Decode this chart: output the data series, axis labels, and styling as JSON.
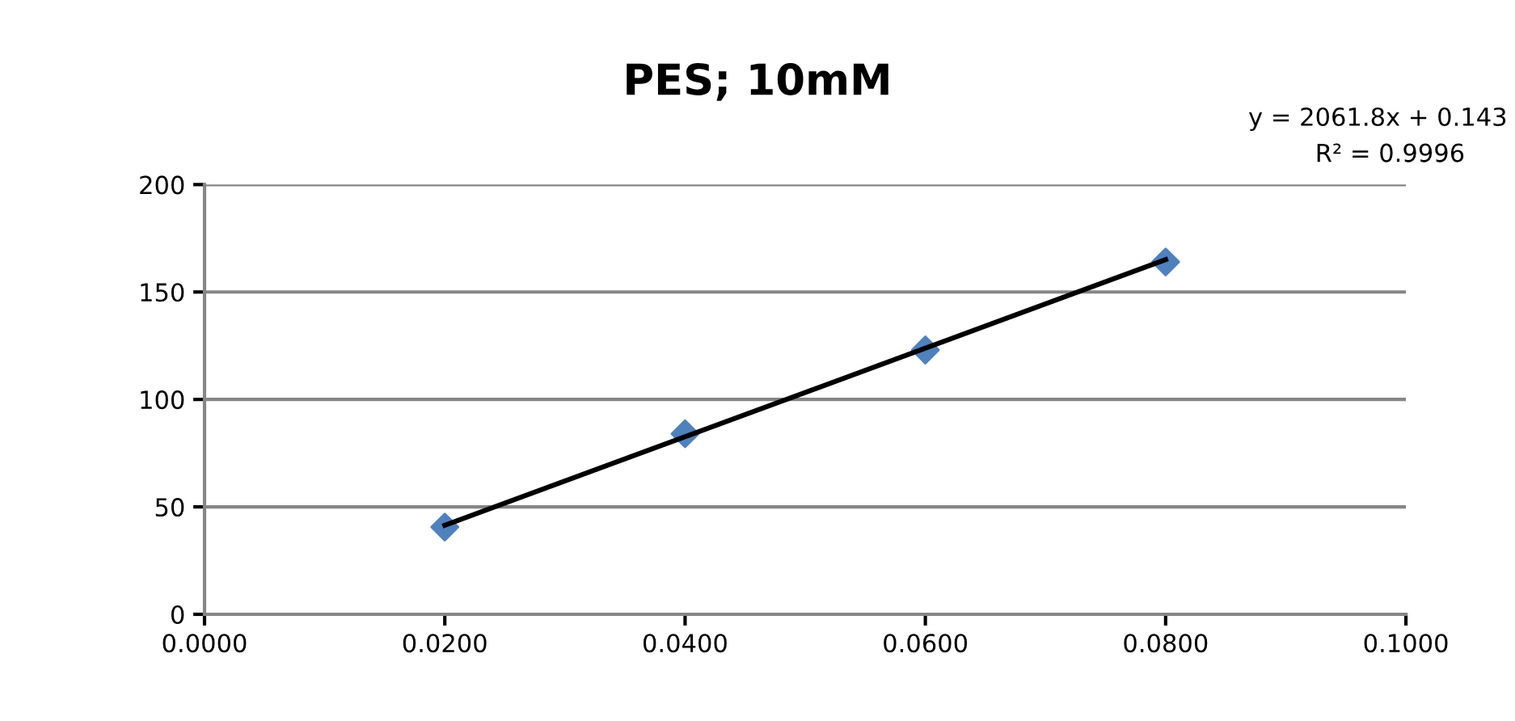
{
  "chart_data": {
    "type": "scatter",
    "title": "PES; 10mM",
    "series": [
      {
        "color": "#4f81bd",
        "marker": "diamond",
        "x": [
          0.02,
          0.04,
          0.06,
          0.08
        ],
        "values": [
          40.6,
          84,
          123,
          164
        ]
      },
      {
        "type": "line",
        "color": "#000000",
        "marker": "none",
        "line_style": "solid",
        "x": [
          0.02,
          0.08
        ],
        "values": [
          41.4,
          165.1
        ]
      }
    ],
    "xlim": [
      0,
      0.1
    ],
    "xticks": [
      {
        "value": 0,
        "label": "0.0000"
      },
      {
        "value": 0.02,
        "label": "0.0200"
      },
      {
        "value": 0.04,
        "label": "0.0400"
      },
      {
        "value": 0.06,
        "label": "0.0600"
      },
      {
        "value": 0.08,
        "label": "0.0800"
      },
      {
        "value": 0.1,
        "label": "0.1000"
      }
    ],
    "ylim": [
      0,
      200
    ],
    "yticks": [
      0,
      50,
      100,
      150,
      200
    ],
    "grid": "y",
    "legend": false,
    "annotations": [
      "y = 2061.8x + 0.143",
      "R² = 0.9996"
    ]
  }
}
